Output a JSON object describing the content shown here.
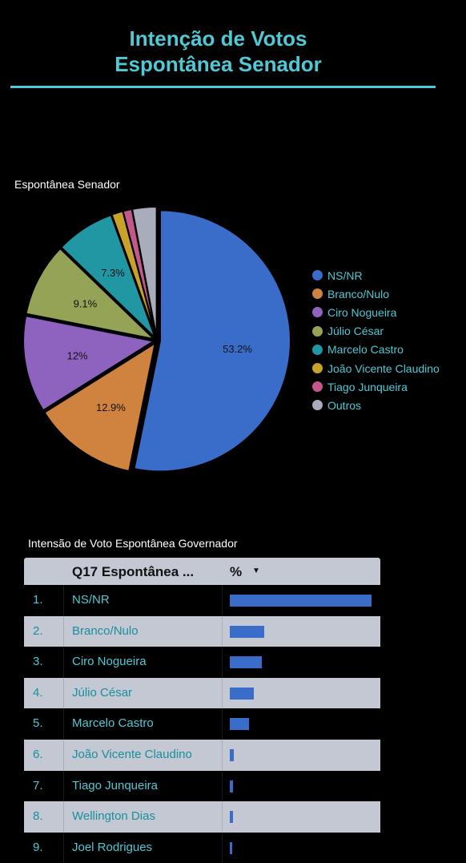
{
  "page": {
    "title_line1": "Intenção de Votos",
    "title_line2": "Espontânea Senador"
  },
  "chart_data": [
    {
      "type": "pie",
      "title": "Espontânea Senador",
      "legend_position": "right",
      "slices": [
        {
          "name": "NS/NR",
          "value": 53.2,
          "label": "53.2%",
          "color": "#3a6cc9"
        },
        {
          "name": "Branco/Nulo",
          "value": 12.9,
          "label": "12.9%",
          "color": "#d0823f"
        },
        {
          "name": "Ciro Nogueira",
          "value": 12.0,
          "label": "12%",
          "color": "#8e63bf"
        },
        {
          "name": "Júlio César",
          "value": 9.1,
          "label": "9.1%",
          "color": "#94a356"
        },
        {
          "name": "Marcelo Castro",
          "value": 7.3,
          "label": "7.3%",
          "color": "#2197a4"
        },
        {
          "name": "João Vicente Claudino",
          "value": 1.4,
          "label": "",
          "color": "#c9a22a"
        },
        {
          "name": "Tiago Junqueira",
          "value": 1.1,
          "label": "",
          "color": "#c4588b"
        },
        {
          "name": "Outros",
          "value": 3.0,
          "label": "",
          "color": "#a9adbb"
        }
      ]
    },
    {
      "type": "table",
      "title": "Intensão de Voto Espontânea Governador",
      "columns": [
        "Q17 Espontânea ...",
        "%"
      ],
      "sort_indicator": "▼",
      "rows": [
        {
          "rank": "1.",
          "name": "NS/NR",
          "value": 53.2
        },
        {
          "rank": "2.",
          "name": "Branco/Nulo",
          "value": 12.9
        },
        {
          "rank": "3.",
          "name": "Ciro Nogueira",
          "value": 12.0
        },
        {
          "rank": "4.",
          "name": "Júlio César",
          "value": 9.1
        },
        {
          "rank": "5.",
          "name": "Marcelo Castro",
          "value": 7.3
        },
        {
          "rank": "6.",
          "name": "João Vicente Claudino",
          "value": 1.4
        },
        {
          "rank": "7.",
          "name": "Tiago Junqueira",
          "value": 1.1
        },
        {
          "rank": "8.",
          "name": "Wellington Dias",
          "value": 1.1
        },
        {
          "rank": "9.",
          "name": "Joel Rodrigues",
          "value": 0.6
        }
      ]
    }
  ]
}
